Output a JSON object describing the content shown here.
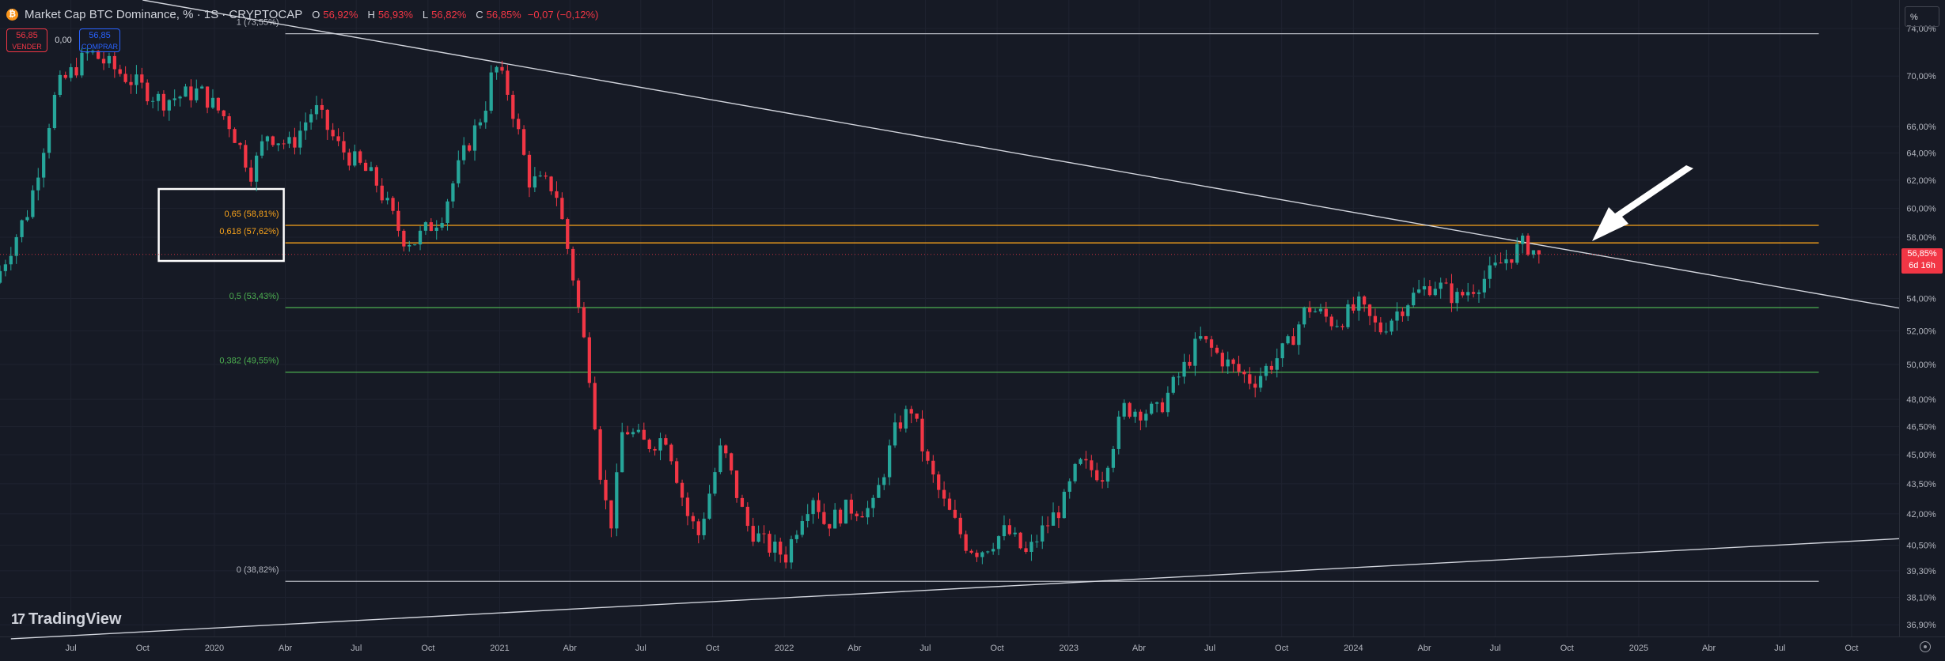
{
  "header": {
    "coin_symbol": "₿",
    "title": "Market Cap BTC Dominance, % · 1S · CRYPTOCAP",
    "open_label": "O",
    "open": "56,92%",
    "high_label": "H",
    "high": "56,93%",
    "low_label": "L",
    "low": "56,82%",
    "close_label": "C",
    "close": "56,85%",
    "change": "−0,07 (−0,12%)"
  },
  "trade": {
    "sell_price": "56,85",
    "sell_label": "VENDER",
    "spread": "0,00",
    "buy_price": "56,85",
    "buy_label": "COMPRAR"
  },
  "scale_button": "%",
  "branding": {
    "logo_mark": "17",
    "name": "TradingView"
  },
  "price_tag": {
    "value": "56,85%",
    "countdown": "6d 16h"
  },
  "colors": {
    "up": "#26a69a",
    "down": "#f23645",
    "fib_gray": "#b2b5be",
    "fib_orange": "#f7a21b",
    "fib_green": "#4caf50",
    "trendline": "#d1d4dc"
  },
  "chart_data": {
    "type": "candlestick",
    "xlabel": "",
    "ylabel": "",
    "y_scale": "log",
    "ylim": [
      36.4,
      76.5
    ],
    "y_ticks": [
      "74,00%",
      "70,00%",
      "66,00%",
      "64,00%",
      "62,00%",
      "60,00%",
      "58,00%",
      "54,00%",
      "52,00%",
      "50,00%",
      "48,00%",
      "46,50%",
      "45,00%",
      "43,50%",
      "42,00%",
      "40,50%",
      "39,30%",
      "38,10%",
      "36,90%"
    ],
    "x_ticks": [
      "Jul",
      "Oct",
      "2020",
      "Abr",
      "Jul",
      "Oct",
      "2021",
      "Abr",
      "Jul",
      "Oct",
      "2022",
      "Abr",
      "Jul",
      "Oct",
      "2023",
      "Abr",
      "Jul",
      "Oct",
      "2024",
      "Abr",
      "Jul",
      "Oct",
      "2025",
      "Abr",
      "Jul",
      "Oct"
    ],
    "xlim": [
      "2019-04-01",
      "2025-12-01"
    ],
    "grid": true,
    "anchors": [
      [
        "2019-04-01",
        55.0
      ],
      [
        "2019-05-15",
        60.0
      ],
      [
        "2019-06-20",
        69.0
      ],
      [
        "2019-08-01",
        72.0
      ],
      [
        "2019-09-15",
        70.0
      ],
      [
        "2019-11-01",
        68.0
      ],
      [
        "2019-12-20",
        68.8
      ],
      [
        "2020-01-25",
        66.5
      ],
      [
        "2020-02-25",
        62.5
      ],
      [
        "2020-03-15",
        65.5
      ],
      [
        "2020-04-15",
        64.5
      ],
      [
        "2020-05-15",
        67.5
      ],
      [
        "2020-06-15",
        64.5
      ],
      [
        "2020-08-01",
        62.0
      ],
      [
        "2020-09-05",
        58.0
      ],
      [
        "2020-09-20",
        57.7
      ],
      [
        "2020-10-25",
        59.5
      ],
      [
        "2020-11-20",
        63.5
      ],
      [
        "2020-12-20",
        67.5
      ],
      [
        "2021-01-01",
        71.0
      ],
      [
        "2021-01-20",
        68.5
      ],
      [
        "2021-02-15",
        62.0
      ],
      [
        "2021-03-20",
        61.5
      ],
      [
        "2021-04-10",
        56.0
      ],
      [
        "2021-05-05",
        49.0
      ],
      [
        "2021-05-20",
        43.0
      ],
      [
        "2021-06-01",
        41.5
      ],
      [
        "2021-06-15",
        46.5
      ],
      [
        "2021-07-15",
        45.5
      ],
      [
        "2021-08-10",
        46.0
      ],
      [
        "2021-09-05",
        42.0
      ],
      [
        "2021-09-20",
        41.0
      ],
      [
        "2021-10-20",
        45.5
      ],
      [
        "2021-11-20",
        41.5
      ],
      [
        "2021-12-15",
        40.5
      ],
      [
        "2022-01-10",
        40.0
      ],
      [
        "2022-01-30",
        42.0
      ],
      [
        "2022-02-15",
        43.0
      ],
      [
        "2022-03-01",
        41.5
      ],
      [
        "2022-04-01",
        42.3
      ],
      [
        "2022-05-01",
        42.2
      ],
      [
        "2022-06-01",
        46.5
      ],
      [
        "2022-06-20",
        47.5
      ],
      [
        "2022-07-10",
        44.5
      ],
      [
        "2022-08-01",
        42.5
      ],
      [
        "2022-08-30",
        40.5
      ],
      [
        "2022-09-15",
        40.2
      ],
      [
        "2022-10-20",
        41.2
      ],
      [
        "2022-11-15",
        40.0
      ],
      [
        "2022-12-01",
        41.0
      ],
      [
        "2023-01-01",
        42.5
      ],
      [
        "2023-01-20",
        44.5
      ],
      [
        "2023-02-20",
        44.0
      ],
      [
        "2023-03-20",
        47.5
      ],
      [
        "2023-05-01",
        47.3
      ],
      [
        "2023-06-01",
        49.5
      ],
      [
        "2023-06-25",
        51.5
      ],
      [
        "2023-08-01",
        50.0
      ],
      [
        "2023-09-01",
        49.0
      ],
      [
        "2023-10-15",
        51.0
      ],
      [
        "2023-11-10",
        53.5
      ],
      [
        "2023-12-15",
        52.5
      ],
      [
        "2024-01-15",
        53.5
      ],
      [
        "2024-02-10",
        52.0
      ],
      [
        "2024-03-20",
        54.0
      ],
      [
        "2024-04-20",
        55.0
      ],
      [
        "2024-05-20",
        54.0
      ],
      [
        "2024-06-30",
        55.5
      ],
      [
        "2024-07-20",
        56.5
      ],
      [
        "2024-08-15",
        57.6
      ],
      [
        "2024-09-01",
        56.85
      ]
    ],
    "fib_levels": [
      {
        "label": "1 (73,55%)",
        "value": 73.55,
        "color": "#b2b5be"
      },
      {
        "label": "0,65 (58,81%)",
        "value": 58.81,
        "color": "#f7a21b"
      },
      {
        "label": "0,618 (57,62%)",
        "value": 57.62,
        "color": "#f7a21b"
      },
      {
        "label": "0,5 (53,43%)",
        "value": 53.43,
        "color": "#4caf50"
      },
      {
        "label": "0,382 (49,55%)",
        "value": 49.55,
        "color": "#4caf50"
      },
      {
        "label": "0 (38,82%)",
        "value": 38.82,
        "color": "#b2b5be"
      }
    ],
    "fib_range": [
      "2020-04-01",
      "2025-08-20"
    ],
    "trendline_down": {
      "from": [
        "2019-10-01",
        76.5
      ],
      "to": [
        "2025-12-01",
        53.4
      ]
    },
    "trendline_up": {
      "from": [
        "2019-04-15",
        36.3
      ],
      "to": [
        "2025-12-01",
        40.8
      ]
    },
    "last_close": 56.85
  }
}
